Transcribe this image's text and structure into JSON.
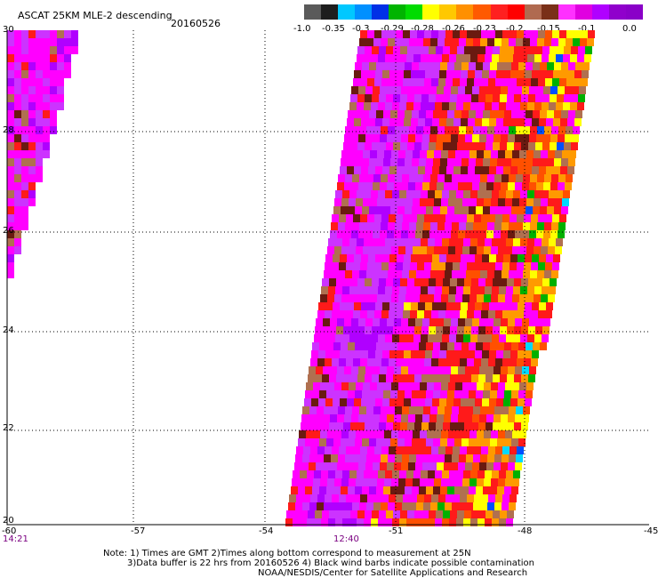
{
  "header": {
    "title": "ASCAT 25KM MLE-2 descending",
    "date": "20160526"
  },
  "colorbar": {
    "colors": [
      "#5a5a5a",
      "#1e1e1e",
      "#00c8ff",
      "#0090ff",
      "#0030e6",
      "#00b400",
      "#00dc00",
      "#ffff00",
      "#ffc800",
      "#ff9000",
      "#ff5a00",
      "#ff2020",
      "#ff0000",
      "#b06a50",
      "#7a3018",
      "#ff30ff",
      "#e000e0",
      "#b000ff",
      "#9000cc",
      "#8a00c8"
    ],
    "tick_labels": [
      "-1.0",
      "-0.35",
      "-0.3",
      "-0.29",
      "-0.28",
      "-0.26",
      "-0.23",
      "-0.2",
      "-0.15",
      "-0.1",
      "0.0"
    ]
  },
  "map": {
    "lat_labels": [
      "30",
      "28",
      "26",
      "24",
      "22",
      "20"
    ],
    "lon_labels": [
      "-60",
      "-57",
      "-54",
      "-51",
      "-48",
      "-45"
    ],
    "times": [
      "14:21",
      "12:40"
    ],
    "time_color": "#7a0080",
    "grid_color": "#000000"
  },
  "palette": {
    "magenta": "#ff00ff",
    "light_purple": "#cc33ff",
    "violet": "#b000ff",
    "purple": "#9400d3",
    "brown_light": "#b07050",
    "brown_dark": "#6a1a10",
    "red": "#ff1a1a",
    "orange_red": "#ff5000",
    "orange": "#ff9a00",
    "yellow": "#ffff00",
    "green": "#00b000",
    "blue": "#0050ff",
    "cyan": "#00d8ff"
  },
  "notes": [
    "Note: 1) Times are GMT 2)Times along bottom correspond to measurement at 25N",
    "3)Data buffer is 22 hrs from 20160526 4) Black wind barbs indicate possible contamination",
    "NOAA/NESDIS/Center for Satellite Applications and Research"
  ]
}
